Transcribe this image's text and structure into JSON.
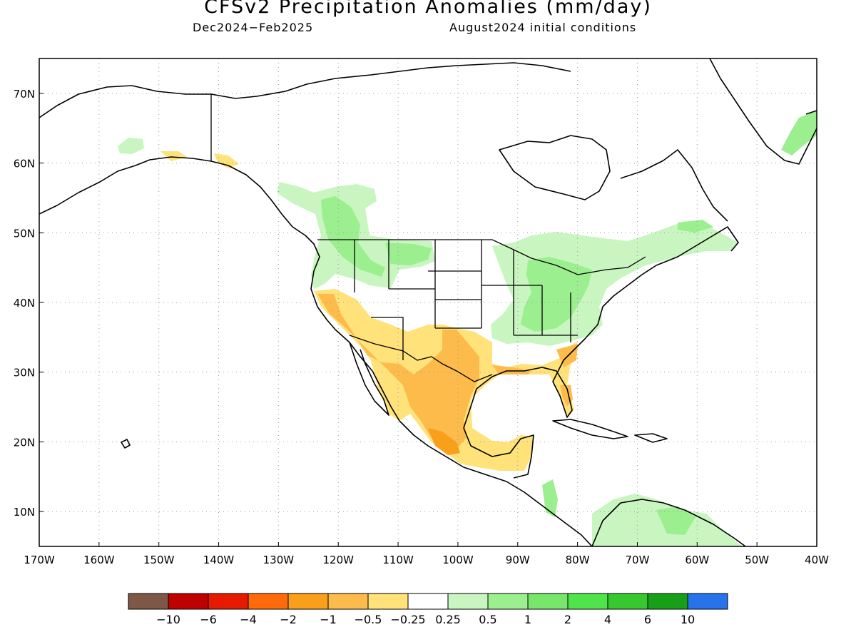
{
  "title": "CFSv2 Precipitation Anomalies (mm/day)",
  "period": "Dec2024−Feb2025",
  "init": "August2024 initial conditions",
  "map": {
    "lon_range": [
      -170,
      -40
    ],
    "lat_range": [
      5,
      75
    ],
    "lon_ticks": [
      {
        "v": -170,
        "label": "170W"
      },
      {
        "v": -160,
        "label": "160W"
      },
      {
        "v": -150,
        "label": "150W"
      },
      {
        "v": -140,
        "label": "140W"
      },
      {
        "v": -130,
        "label": "130W"
      },
      {
        "v": -120,
        "label": "120W"
      },
      {
        "v": -110,
        "label": "110W"
      },
      {
        "v": -100,
        "label": "100W"
      },
      {
        "v": -90,
        "label": "90W"
      },
      {
        "v": -80,
        "label": "80W"
      },
      {
        "v": -70,
        "label": "70W"
      },
      {
        "v": -60,
        "label": "60W"
      },
      {
        "v": -50,
        "label": "50W"
      },
      {
        "v": -40,
        "label": "40W"
      }
    ],
    "lat_ticks": [
      {
        "v": 70,
        "label": "70N"
      },
      {
        "v": 60,
        "label": "60N"
      },
      {
        "v": 50,
        "label": "50N"
      },
      {
        "v": 40,
        "label": "40N"
      },
      {
        "v": 30,
        "label": "30N"
      },
      {
        "v": 20,
        "label": "20N"
      },
      {
        "v": 10,
        "label": "10N"
      }
    ],
    "grid": true,
    "colors": {
      "dry_light": "#ffe27a",
      "dry_mid": "#fcbb4a",
      "dry_strong": "#f99f1a",
      "dry_severe": "#ff6a0a",
      "wet_light": "#c8f5c0",
      "wet_mid": "#9bef8f",
      "wet_strong": "#78e66a"
    }
  },
  "colorbar": {
    "colors": [
      "#7f5746",
      "#bf0000",
      "#e61a00",
      "#ff6a0a",
      "#f99f1a",
      "#fcbb4a",
      "#ffe27a",
      "#ffffff",
      "#c8f5c0",
      "#9bef8f",
      "#78e66a",
      "#4fe44a",
      "#37c830",
      "#17a017",
      "#2673eb"
    ],
    "labels": [
      "−10",
      "−6",
      "−4",
      "−2",
      "−1",
      "−0.5",
      "−0.25",
      "0.25",
      "0.5",
      "1",
      "2",
      "4",
      "6",
      "10"
    ]
  }
}
